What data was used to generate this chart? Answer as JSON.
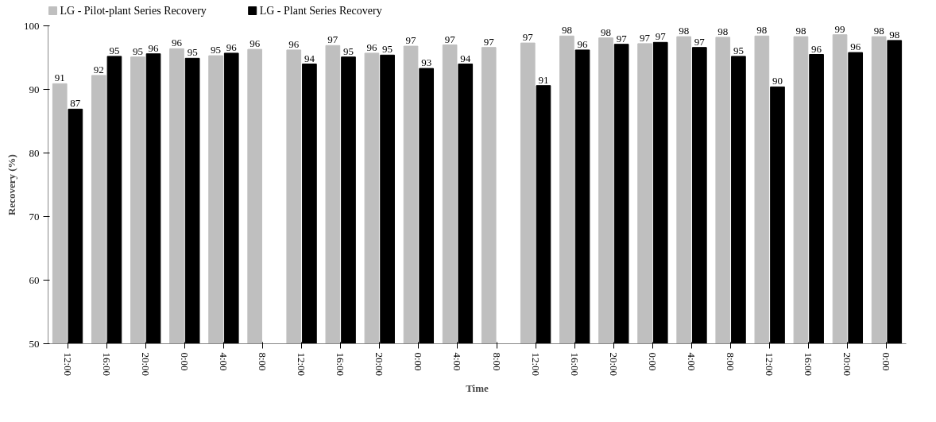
{
  "chart_data": {
    "type": "bar",
    "xlabel": "Time",
    "ylabel": "Recovery (%)",
    "categories": [
      "12:00",
      "16:00",
      "20:00",
      "0:00",
      "4:00",
      "8:00",
      "12:00",
      "16:00",
      "20:00",
      "0:00",
      "4:00",
      "8:00",
      "12:00",
      "16:00",
      "20:00",
      "0:00",
      "4:00",
      "8:00",
      "12:00",
      "16:00",
      "20:00",
      "0:00"
    ],
    "series": [
      {
        "name": "LG - Pilot-plant Series Recovery",
        "color": "#bfbfbf",
        "values": [
          90.9,
          92.2,
          95.1,
          96.4,
          95.3,
          96.3,
          96.2,
          96.9,
          95.7,
          96.8,
          97.0,
          96.6,
          97.3,
          98.4,
          98.1,
          97.2,
          98.3,
          98.2,
          98.4,
          98.3,
          98.6,
          98.3
        ],
        "value_labels": [
          "91",
          "92",
          "95",
          "96",
          "95",
          "96",
          "96",
          "97",
          "96",
          "97",
          "97",
          "97",
          "97",
          "98",
          "98",
          "97",
          "98",
          "98",
          "98",
          "98",
          "99",
          "98"
        ]
      },
      {
        "name": "LG - Plant Series Recovery",
        "color": "#000000",
        "values": [
          86.9,
          95.2,
          95.6,
          94.9,
          95.7,
          null,
          94.0,
          95.1,
          95.4,
          93.3,
          94.0,
          null,
          90.6,
          96.2,
          97.1,
          97.4,
          96.6,
          95.2,
          90.4,
          95.5,
          95.8,
          97.7
        ],
        "value_labels": [
          "87",
          "95",
          "96",
          "95",
          "96",
          null,
          "94",
          "95",
          "95",
          "93",
          "94",
          null,
          "91",
          "96",
          "97",
          "97",
          "97",
          "95",
          "90",
          "96",
          "96",
          "98"
        ]
      }
    ],
    "ylim": [
      50,
      100
    ],
    "yticks": [
      50,
      60,
      70,
      80,
      90,
      100
    ],
    "grid": false,
    "legend": "top left"
  }
}
